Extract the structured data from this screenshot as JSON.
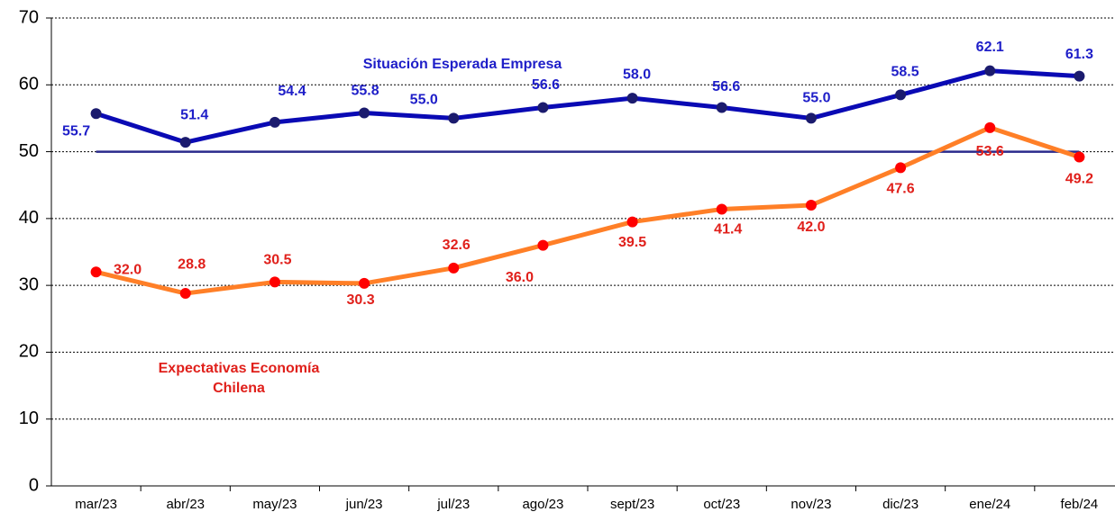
{
  "chart_data": {
    "type": "line",
    "categories": [
      "mar/23",
      "abr/23",
      "may/23",
      "jun/23",
      "jul/23",
      "ago/23",
      "sept/23",
      "oct/23",
      "nov/23",
      "dic/23",
      "ene/24",
      "feb/24"
    ],
    "series": [
      {
        "name": "Situación Esperada Empresa",
        "color": "#0a0ab4",
        "marker_color": "#1b1b6e",
        "label_color": "#1e1ec8",
        "values": [
          55.7,
          51.4,
          54.4,
          55.8,
          55.0,
          56.6,
          58.0,
          56.6,
          55.0,
          58.5,
          62.1,
          61.3
        ],
        "value_labels": [
          "55.7",
          "51.4",
          "54.4",
          "55.8",
          "55.0",
          "56.6",
          "58.0",
          "56.6",
          "55.0",
          "58.5",
          "62.1",
          "61.3"
        ]
      },
      {
        "name": "Expectativas Economía Chilena",
        "color": "#ff7f27",
        "marker_color": "#ff0000",
        "label_color": "#e0201b",
        "values": [
          32.0,
          28.8,
          30.5,
          30.3,
          32.6,
          36.0,
          39.5,
          41.4,
          42.0,
          47.6,
          53.6,
          49.2
        ],
        "value_labels": [
          "32.0",
          "28.8",
          "30.5",
          "30.3",
          "32.6",
          "36.0",
          "39.5",
          "41.4",
          "42.0",
          "47.6",
          "53.6",
          "49.2"
        ]
      }
    ],
    "reference_line": {
      "value": 50,
      "color": "#2a2a8c"
    },
    "ylim": [
      0,
      70
    ],
    "yticks": [
      0,
      10,
      20,
      30,
      40,
      50,
      60,
      70
    ],
    "grid": true
  }
}
